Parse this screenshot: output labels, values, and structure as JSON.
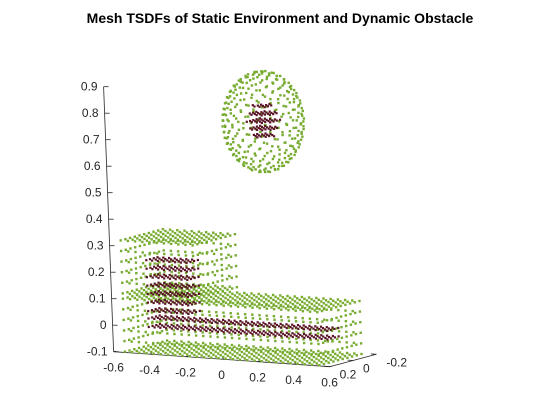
{
  "chart_data": {
    "type": "scatter",
    "subtype": "3d-point-cloud",
    "title": "Mesh TSDFs of Static Environment and Dynamic Obstacle",
    "xlabel": "",
    "ylabel": "",
    "zlabel": "",
    "xlim": [
      -0.6,
      0.6
    ],
    "ylim": [
      -0.2,
      0.2
    ],
    "zlim": [
      -0.1,
      0.9
    ],
    "x_ticks": [
      "-0.6",
      "-0.4",
      "-0.2",
      "0",
      "0.2",
      "0.4",
      "0.6"
    ],
    "y_ticks": [
      "-0.2",
      "0",
      "0.2"
    ],
    "z_ticks": [
      "-0.1",
      "0",
      "0.1",
      "0.2",
      "0.3",
      "0.4",
      "0.5",
      "0.6",
      "0.7",
      "0.8",
      "0.9"
    ],
    "grid": false,
    "legend": false,
    "series": [
      {
        "color": "#77ac30",
        "objects": [
          {
            "shape": "box",
            "x_range": [
              -0.55,
              0.55
            ],
            "y_range": [
              -0.18,
              0.18
            ],
            "z_range": [
              -0.1,
              0.12
            ]
          },
          {
            "shape": "box",
            "x_range": [
              -0.55,
              -0.15
            ],
            "y_range": [
              -0.18,
              0.18
            ],
            "z_range": [
              0.12,
              0.32
            ]
          },
          {
            "shape": "sphere",
            "center": [
              0.15,
              0.0,
              0.78
            ],
            "radius": 0.19
          }
        ]
      },
      {
        "color": "#5a1626",
        "objects": [
          {
            "shape": "core",
            "x_range": [
              -0.5,
              0.5
            ],
            "y_range": [
              -0.05,
              0.05
            ],
            "z_range": [
              -0.02,
              0.04
            ]
          },
          {
            "shape": "core",
            "x_range": [
              -0.5,
              -0.25
            ],
            "y_range": [
              -0.05,
              0.05
            ],
            "z_range": [
              0.04,
              0.25
            ]
          },
          {
            "shape": "core",
            "center": [
              0.15,
              0.0,
              0.78
            ],
            "radius": 0.08
          }
        ]
      }
    ]
  }
}
